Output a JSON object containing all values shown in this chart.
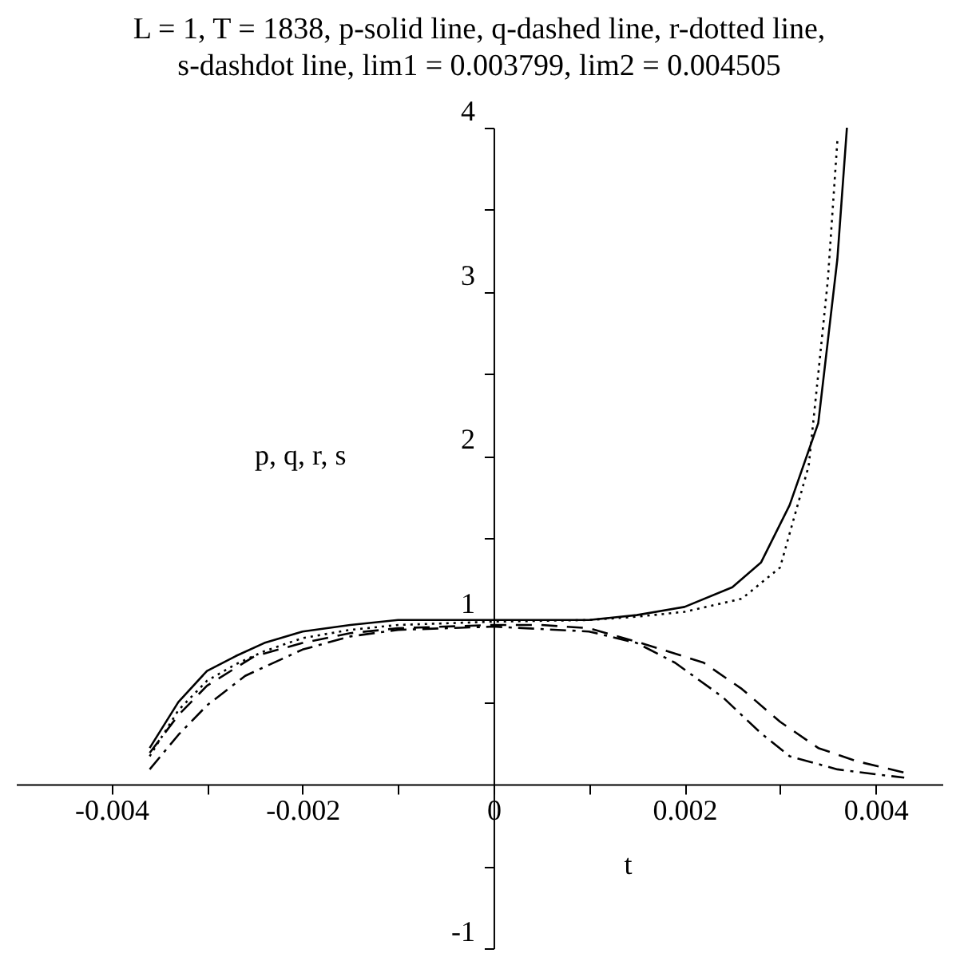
{
  "chart_data": {
    "type": "line",
    "title": "L = 1, T = 1838, p-solid line, q-dashed line, r-dotted line, s-dashdot line, lim1 = 0.003799, lim2 = 0.004505",
    "xlabel": "t",
    "ylabel": "p, q, r, s",
    "xlim": [
      -0.005,
      0.0047
    ],
    "ylim": [
      -1,
      4
    ],
    "xticks": [
      -0.004,
      {
        "value": -0.003,
        "label": null
      },
      -0.002,
      {
        "value": -0.001,
        "label": null
      },
      0,
      {
        "value": 0.001,
        "label": null
      },
      0.002,
      {
        "value": 0.003,
        "label": null
      },
      0.004
    ],
    "yticks": [
      -1,
      {
        "value": -0.5,
        "label": null
      },
      {
        "value": 0.5,
        "label": null
      },
      1,
      {
        "value": 1.5,
        "label": null
      },
      2,
      {
        "value": 2.5,
        "label": null
      },
      3,
      {
        "value": 3.5,
        "label": null
      },
      4
    ],
    "legend": false,
    "series": [
      {
        "line_style": "solid",
        "color": "#000000",
        "x": [
          -0.0036,
          -0.0033,
          -0.003,
          -0.0027,
          -0.0024,
          -0.002,
          -0.0015,
          -0.001,
          0,
          0.001,
          0.0015,
          0.002,
          0.0025,
          0.0028,
          0.0031,
          0.0034,
          0.0035,
          0.0036,
          0.0037
        ],
        "values": [
          0.22,
          0.5,
          0.69,
          0.78,
          0.86,
          0.93,
          0.97,
          1.0,
          1.0,
          1.0,
          1.03,
          1.08,
          1.2,
          1.35,
          1.7,
          2.2,
          2.7,
          3.2,
          4.0
        ]
      },
      {
        "line_style": "dashed",
        "color": "#000000",
        "x": [
          -0.0036,
          -0.0033,
          -0.003,
          -0.0025,
          -0.002,
          -0.0015,
          -0.001,
          0,
          0.0005,
          0.001,
          0.0016,
          0.0022,
          0.0026,
          0.003,
          0.0034,
          0.0038,
          0.0043
        ],
        "values": [
          0.19,
          0.42,
          0.6,
          0.78,
          0.86,
          0.92,
          0.95,
          0.97,
          0.97,
          0.95,
          0.85,
          0.74,
          0.58,
          0.38,
          0.22,
          0.14,
          0.07
        ]
      },
      {
        "line_style": "dotted",
        "color": "#000000",
        "x": [
          -0.0036,
          -0.0033,
          -0.003,
          -0.0027,
          -0.0024,
          -0.002,
          -0.0015,
          -0.001,
          0,
          0.001,
          0.0015,
          0.002,
          0.0026,
          0.003,
          0.0033,
          0.0034,
          0.0035,
          0.0036
        ],
        "values": [
          0.17,
          0.45,
          0.63,
          0.73,
          0.81,
          0.89,
          0.94,
          0.97,
          0.99,
          1.0,
          1.02,
          1.05,
          1.13,
          1.32,
          1.94,
          2.5,
          3.07,
          3.92
        ]
      },
      {
        "line_style": "dashdot",
        "color": "#000000",
        "x": [
          -0.0036,
          -0.0033,
          -0.003,
          -0.0026,
          -0.002,
          -0.0015,
          -0.001,
          0,
          0.001,
          0.0015,
          0.0019,
          0.0024,
          0.0028,
          0.0031,
          0.0036,
          0.004,
          0.0043
        ],
        "values": [
          0.09,
          0.3,
          0.48,
          0.66,
          0.82,
          0.9,
          0.94,
          0.96,
          0.93,
          0.86,
          0.74,
          0.53,
          0.31,
          0.17,
          0.09,
          0.06,
          0.04
        ]
      }
    ]
  }
}
